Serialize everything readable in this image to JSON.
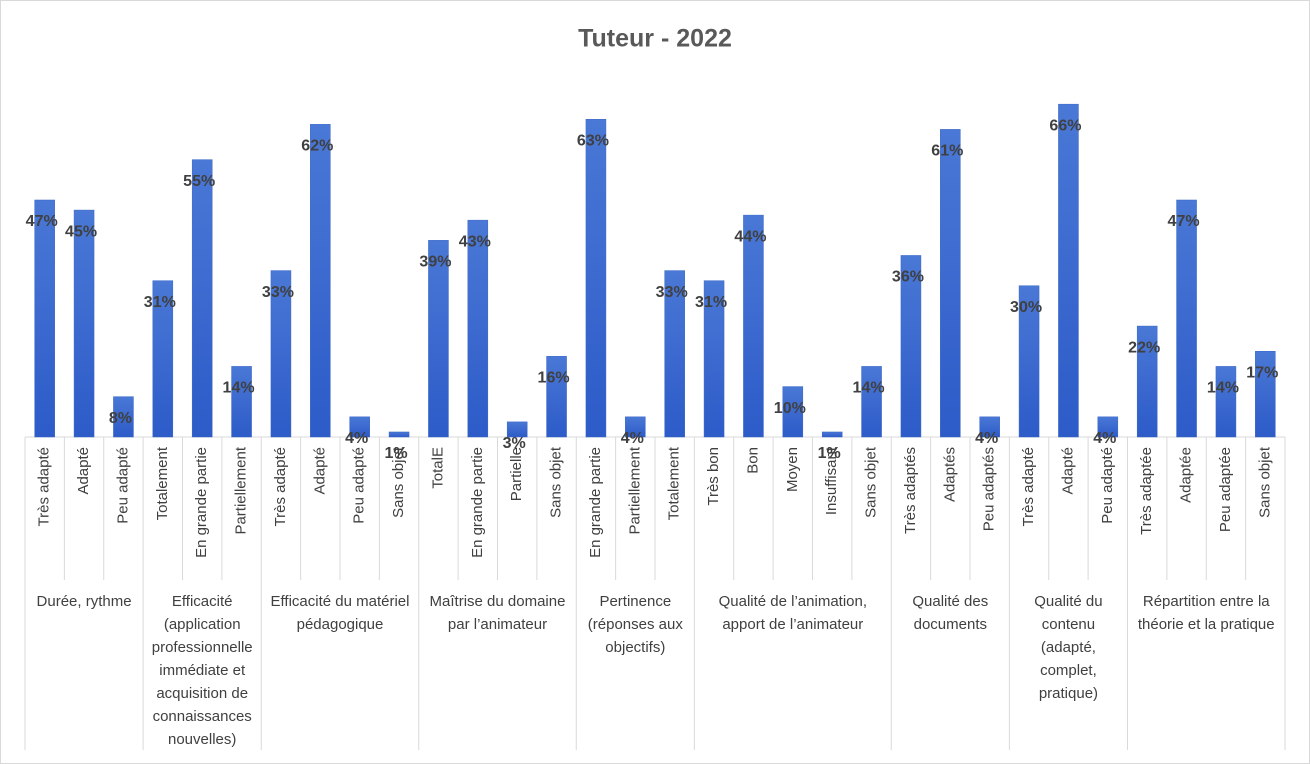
{
  "chart_data": {
    "type": "bar",
    "title": "Tuteur - 2022",
    "color": "#4472c4",
    "ylim": [
      0,
      70
    ],
    "groups": [
      {
        "name": "Durée, rythme",
        "categories": [
          "Très adapté",
          "Adapté",
          "Peu adapté"
        ],
        "values": [
          47,
          45,
          8
        ],
        "value_labels": [
          "47%",
          "45%",
          "8%"
        ]
      },
      {
        "name": "Efficacité (application professionnelle immédiate et acquisition de connaissances nouvelles)",
        "categories": [
          "Totalement",
          "En grande partie",
          "Partiellement"
        ],
        "values": [
          31,
          55,
          14
        ],
        "value_labels": [
          "31%",
          "55%",
          "14%"
        ]
      },
      {
        "name": "Efficacité du matériel pédagogique",
        "categories": [
          "Très adapté",
          "Adapté",
          "Peu adapté",
          "Sans objet"
        ],
        "values": [
          33,
          62,
          4,
          1
        ],
        "value_labels": [
          "33%",
          "62%",
          "4%",
          "1%"
        ]
      },
      {
        "name": "Maîtrise du domaine par l’animateur",
        "categories": [
          "TotalE",
          "En grande partie",
          "Partielle",
          "Sans objet"
        ],
        "values": [
          39,
          43,
          3,
          16
        ],
        "value_labels": [
          "39%",
          "43%",
          "3%",
          "16%"
        ]
      },
      {
        "name": "Pertinence (réponses aux objectifs)",
        "categories": [
          "En grande partie",
          "Partiellement",
          "Totalement"
        ],
        "values": [
          63,
          4,
          33
        ],
        "value_labels": [
          "63%",
          "4%",
          "33%"
        ]
      },
      {
        "name": "Qualité de l’animation, apport de l’animateur",
        "categories": [
          "Très bon",
          "Bon",
          "Moyen",
          "Insuffisant",
          "Sans objet"
        ],
        "values": [
          31,
          44,
          10,
          1,
          14
        ],
        "value_labels": [
          "31%",
          "44%",
          "10%",
          "1%",
          "14%"
        ]
      },
      {
        "name": "Qualité des documents",
        "categories": [
          "Très adaptés",
          "Adaptés",
          "Peu adaptés"
        ],
        "values": [
          36,
          61,
          4
        ],
        "value_labels": [
          "36%",
          "61%",
          "4%"
        ]
      },
      {
        "name": "Qualité du contenu (adapté, complet, pratique)",
        "categories": [
          "Très adapté",
          "Adapté",
          "Peu adapté"
        ],
        "values": [
          30,
          66,
          4
        ],
        "value_labels": [
          "30%",
          "66%",
          "4%"
        ]
      },
      {
        "name": "Répartition entre la théorie et la pratique",
        "categories": [
          "Très adaptée",
          "Adaptée",
          "Peu adaptée",
          "Sans objet"
        ],
        "values": [
          22,
          47,
          14,
          17
        ],
        "value_labels": [
          "22%",
          "47%",
          "14%",
          "17%"
        ]
      }
    ]
  }
}
